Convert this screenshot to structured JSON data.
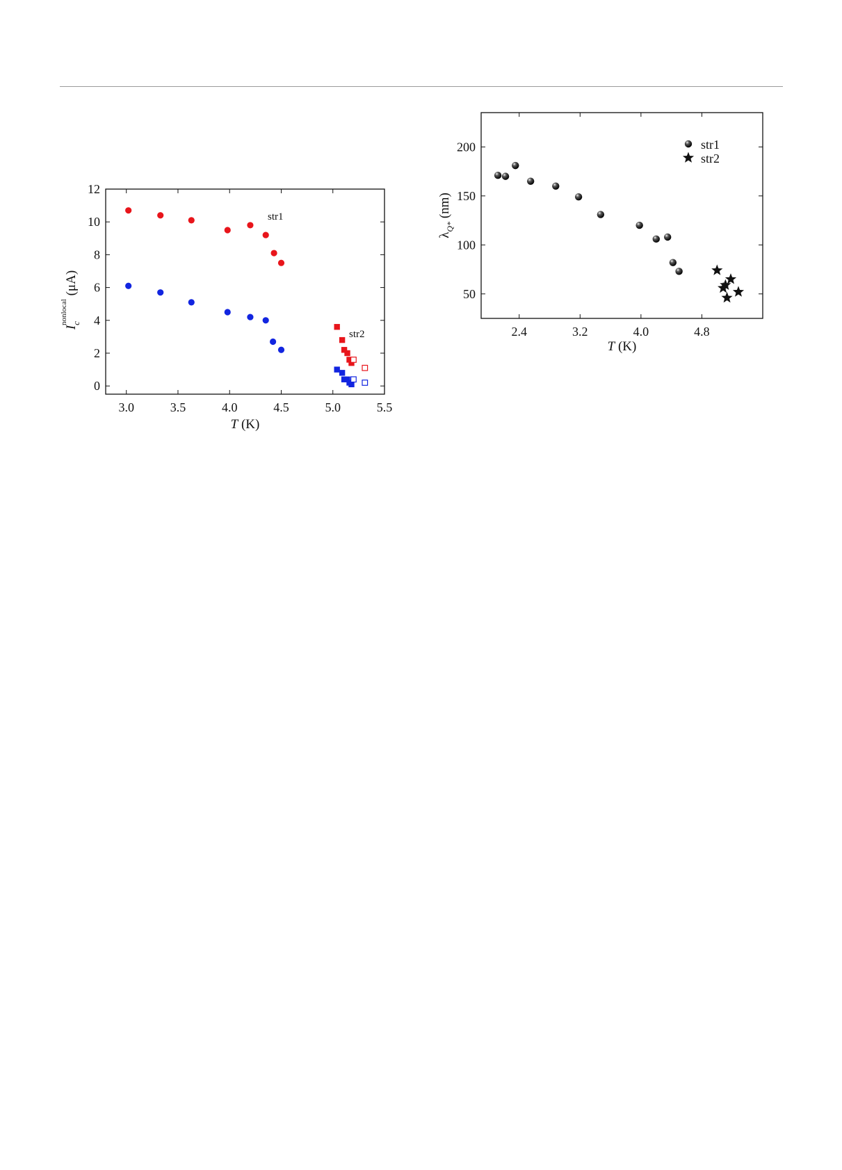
{
  "chart_data": [
    {
      "type": "scatter",
      "title": "",
      "xlabel": {
        "symbol": "T",
        "unit": " (K)"
      },
      "ylabel": {
        "symbol": "I",
        "subscript": "c",
        "superscript": "nonlocal",
        "unit": " (μA)"
      },
      "xlim": [
        2.8,
        5.5
      ],
      "ylim": [
        -0.5,
        12
      ],
      "xticks": [
        3.0,
        3.5,
        4.0,
        4.5,
        5.0,
        5.5
      ],
      "xtick_labels": [
        "3.0",
        "3.5",
        "4.0",
        "4.5",
        "5.0",
        "5.5"
      ],
      "yticks": [
        0,
        2,
        4,
        6,
        8,
        10,
        12
      ],
      "ytick_labels": [
        "0",
        "2",
        "4",
        "6",
        "8",
        "10",
        "12"
      ],
      "grid": false,
      "annotations": [
        "str1",
        "str2"
      ],
      "series": [
        {
          "color": "#e8151b",
          "marker": "circle",
          "x": [
            3.02,
            3.33,
            3.63,
            3.98,
            4.2,
            4.35,
            4.43,
            4.5
          ],
          "y": [
            10.7,
            10.4,
            10.1,
            9.5,
            9.8,
            9.2,
            8.1,
            7.5
          ]
        },
        {
          "color": "#1225e0",
          "marker": "circle",
          "x": [
            3.02,
            3.33,
            3.63,
            3.98,
            4.2,
            4.35,
            4.42,
            4.5
          ],
          "y": [
            6.1,
            5.7,
            5.1,
            4.5,
            4.2,
            4.0,
            2.7,
            2.2
          ]
        },
        {
          "color": "#e8151b",
          "marker": "square",
          "x": [
            5.04,
            5.09,
            5.11,
            5.14,
            5.16,
            5.18
          ],
          "y": [
            3.6,
            2.8,
            2.2,
            2.0,
            1.6,
            1.4
          ]
        },
        {
          "color": "#1225e0",
          "marker": "square",
          "x": [
            5.04,
            5.09,
            5.11,
            5.14,
            5.16,
            5.18
          ],
          "y": [
            1.0,
            0.8,
            0.4,
            0.4,
            0.2,
            0.1
          ]
        },
        {
          "color": "#e8151b",
          "marker": "open-square",
          "x": [
            5.2,
            5.31
          ],
          "y": [
            1.6,
            1.1
          ]
        },
        {
          "color": "#1225e0",
          "marker": "open-square",
          "x": [
            5.2,
            5.31
          ],
          "y": [
            0.4,
            0.2
          ]
        }
      ]
    },
    {
      "type": "scatter",
      "title": "",
      "xlabel": {
        "symbol": "T",
        "unit": " (K)"
      },
      "ylabel": {
        "symbol": "λ",
        "subscript": "Q*",
        "unit": " (nm)"
      },
      "xlim": [
        1.9,
        5.6
      ],
      "ylim": [
        25,
        235
      ],
      "xticks": [
        2.4,
        3.2,
        4.0,
        4.8
      ],
      "xtick_labels": [
        "2.4",
        "3.2",
        "4.0",
        "4.8"
      ],
      "yticks": [
        50,
        100,
        150,
        200
      ],
      "ytick_labels": [
        "50",
        "100",
        "150",
        "200"
      ],
      "grid": false,
      "legend_position": "top-right",
      "series": [
        {
          "name": "str1",
          "color": "#111111",
          "marker": "sphere",
          "x": [
            2.12,
            2.22,
            2.35,
            2.55,
            2.88,
            3.18,
            3.47,
            3.98,
            4.2,
            4.35,
            4.42,
            4.5
          ],
          "y": [
            171,
            170,
            181,
            165,
            160,
            149,
            131,
            120,
            106,
            108,
            82,
            73
          ]
        },
        {
          "name": "str2",
          "color": "#111111",
          "marker": "star",
          "x": [
            5.0,
            5.08,
            5.11,
            5.13,
            5.18,
            5.28
          ],
          "y": [
            74,
            56,
            59,
            46,
            65,
            52
          ]
        }
      ]
    }
  ]
}
